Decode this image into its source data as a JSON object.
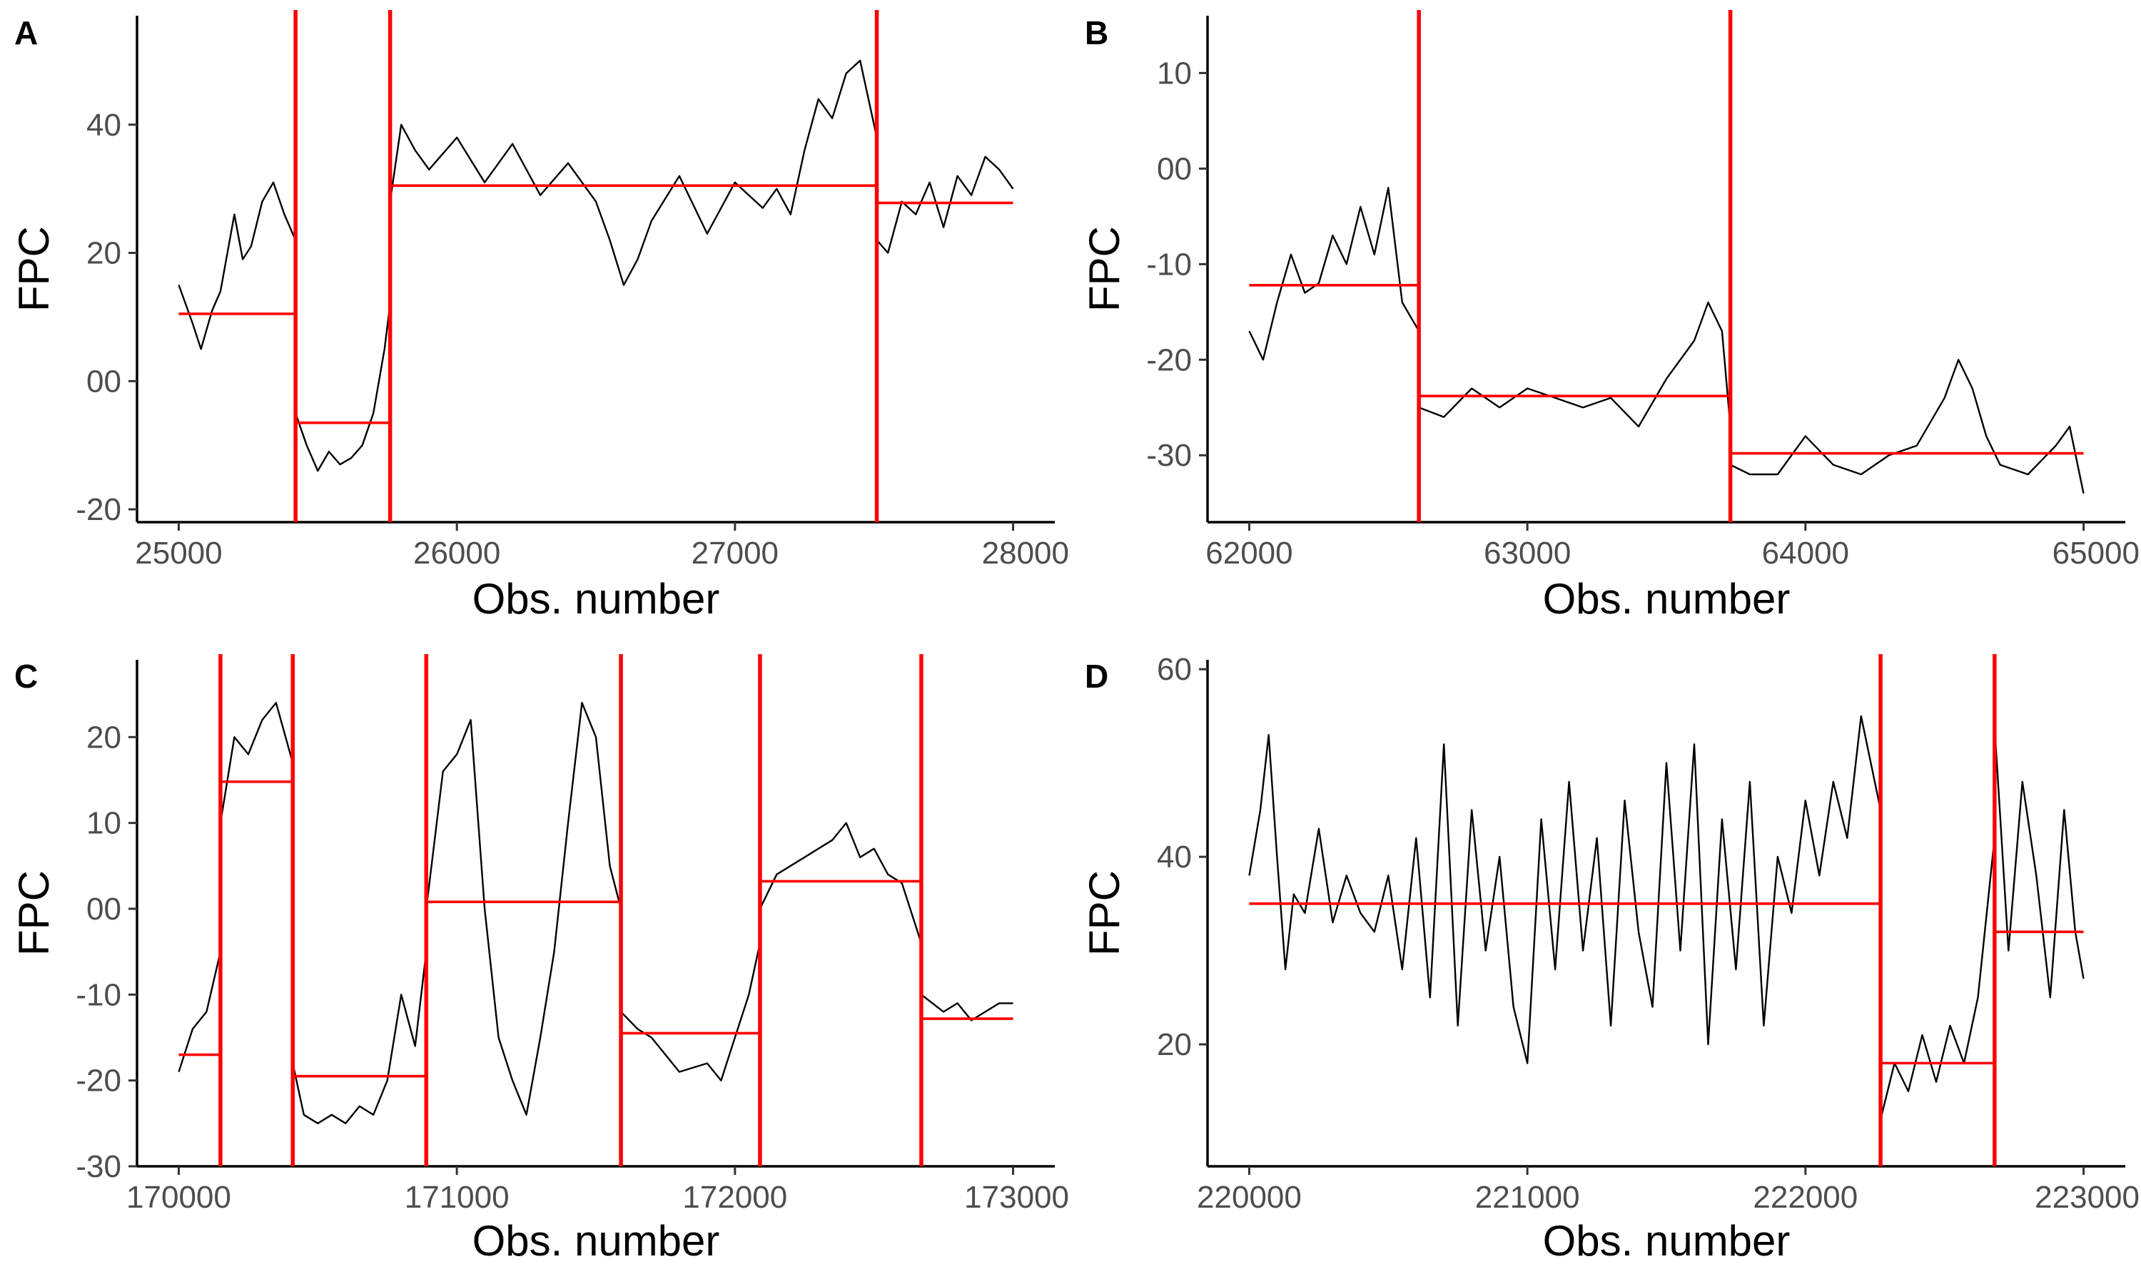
{
  "figure": {
    "background": "#ffffff",
    "series_color": "#000000",
    "changepoint_color": "#ff0000"
  },
  "chart_data": [
    {
      "panel": "A",
      "type": "line",
      "xlabel": "Obs. number",
      "ylabel": "FPC",
      "xlim": [
        24850,
        28150
      ],
      "ylim": [
        -22,
        57
      ],
      "xticks": [
        25000,
        26000,
        27000,
        28000
      ],
      "xtick_labels": [
        "25000",
        "26000",
        "27000",
        "28000"
      ],
      "yticks": [
        -20,
        0,
        20,
        40
      ],
      "ytick_labels": [
        "-20",
        "00",
        "20",
        "40"
      ],
      "changepoints": [
        25420,
        25760,
        27510
      ],
      "segments": [
        {
          "x0": 25000,
          "x1": 25420,
          "mean": 10.5
        },
        {
          "x0": 25420,
          "x1": 25760,
          "mean": -6.5
        },
        {
          "x0": 25760,
          "x1": 27510,
          "mean": 30.5
        },
        {
          "x0": 27510,
          "x1": 28000,
          "mean": 27.8
        }
      ],
      "series": [
        {
          "x": [
            25000,
            25050,
            25080,
            25120,
            25150,
            25200,
            25230,
            25260,
            25300,
            25340,
            25380,
            25420
          ],
          "y": [
            15,
            9,
            5,
            11,
            14,
            26,
            19,
            21,
            28,
            31,
            26,
            22
          ]
        },
        {
          "x": [
            25420,
            25460,
            25500,
            25540,
            25580,
            25620,
            25660,
            25700,
            25740,
            25760
          ],
          "y": [
            -5,
            -10,
            -14,
            -11,
            -13,
            -12,
            -10,
            -5,
            5,
            12
          ]
        },
        {
          "x": [
            25760,
            25800,
            25850,
            25900,
            26000,
            26100,
            26200,
            26300,
            26400,
            26500,
            26550,
            26600,
            26650,
            26700,
            26800,
            26900,
            27000,
            27100,
            27150,
            27200,
            27250,
            27300,
            27350,
            27400,
            27450,
            27510
          ],
          "y": [
            28,
            40,
            36,
            33,
            38,
            31,
            37,
            29,
            34,
            28,
            22,
            15,
            19,
            25,
            32,
            23,
            31,
            27,
            30,
            26,
            36,
            44,
            41,
            48,
            50,
            38
          ]
        },
        {
          "x": [
            27510,
            27550,
            27600,
            27650,
            27700,
            27750,
            27800,
            27850,
            27900,
            27950,
            28000
          ],
          "y": [
            22,
            20,
            28,
            26,
            31,
            24,
            32,
            29,
            35,
            33,
            30
          ]
        }
      ]
    },
    {
      "panel": "B",
      "type": "line",
      "xlabel": "Obs. number",
      "ylabel": "FPC",
      "xlim": [
        61850,
        65150
      ],
      "ylim": [
        -37,
        16
      ],
      "xticks": [
        62000,
        63000,
        64000,
        65000
      ],
      "xtick_labels": [
        "62000",
        "63000",
        "64000",
        "65000"
      ],
      "yticks": [
        -30,
        -20,
        -10,
        0,
        10
      ],
      "ytick_labels": [
        "-30",
        "-20",
        "-10",
        "00",
        "10"
      ],
      "changepoints": [
        62610,
        63730
      ],
      "segments": [
        {
          "x0": 62000,
          "x1": 62610,
          "mean": -12.2
        },
        {
          "x0": 62610,
          "x1": 63730,
          "mean": -23.8
        },
        {
          "x0": 63730,
          "x1": 65000,
          "mean": -29.8
        }
      ],
      "series": [
        {
          "x": [
            62000,
            62050,
            62100,
            62150,
            62200,
            62250,
            62300,
            62350,
            62400,
            62450,
            62500,
            62550,
            62610
          ],
          "y": [
            -17,
            -20,
            -14,
            -9,
            -13,
            -12,
            -7,
            -10,
            -4,
            -9,
            -2,
            -14,
            -17
          ]
        },
        {
          "x": [
            62610,
            62700,
            62800,
            62900,
            63000,
            63100,
            63200,
            63300,
            63400,
            63500,
            63600,
            63650,
            63700,
            63730
          ],
          "y": [
            -25,
            -26,
            -23,
            -25,
            -23,
            -24,
            -25,
            -24,
            -27,
            -22,
            -18,
            -14,
            -17,
            -27
          ]
        },
        {
          "x": [
            63730,
            63800,
            63900,
            64000,
            64100,
            64200,
            64300,
            64400,
            64500,
            64550,
            64600,
            64650,
            64700,
            64800,
            64900,
            64950,
            65000
          ],
          "y": [
            -31,
            -32,
            -32,
            -28,
            -31,
            -32,
            -30,
            -29,
            -24,
            -20,
            -23,
            -28,
            -31,
            -32,
            -29,
            -27,
            -34
          ]
        }
      ]
    },
    {
      "panel": "C",
      "type": "line",
      "xlabel": "Obs. number",
      "ylabel": "FPC",
      "xlim": [
        169850,
        173150
      ],
      "ylim": [
        -30,
        29
      ],
      "xticks": [
        170000,
        171000,
        172000,
        173000
      ],
      "xtick_labels": [
        "170000",
        "171000",
        "172000",
        "173000"
      ],
      "yticks": [
        -30,
        -20,
        -10,
        0,
        10,
        20
      ],
      "ytick_labels": [
        "-30",
        "-20",
        "-10",
        "00",
        "10",
        "20"
      ],
      "changepoints": [
        170150,
        170410,
        170890,
        171590,
        172090,
        172670
      ],
      "segments": [
        {
          "x0": 170000,
          "x1": 170150,
          "mean": -17
        },
        {
          "x0": 170150,
          "x1": 170410,
          "mean": 14.8
        },
        {
          "x0": 170410,
          "x1": 170890,
          "mean": -19.5
        },
        {
          "x0": 170890,
          "x1": 171590,
          "mean": 0.8
        },
        {
          "x0": 171590,
          "x1": 172090,
          "mean": -14.5
        },
        {
          "x0": 172090,
          "x1": 172670,
          "mean": 3.2
        },
        {
          "x0": 172670,
          "x1": 173000,
          "mean": -12.8
        }
      ],
      "series": [
        {
          "x": [
            170000,
            170050,
            170100,
            170150
          ],
          "y": [
            -19,
            -14,
            -12,
            -5
          ]
        },
        {
          "x": [
            170150,
            170200,
            170250,
            170300,
            170350,
            170410
          ],
          "y": [
            10,
            20,
            18,
            22,
            24,
            17
          ]
        },
        {
          "x": [
            170410,
            170450,
            170500,
            170550,
            170600,
            170650,
            170700,
            170750,
            170800,
            170850,
            170890
          ],
          "y": [
            -18,
            -24,
            -25,
            -24,
            -25,
            -23,
            -24,
            -20,
            -10,
            -16,
            -5
          ]
        },
        {
          "x": [
            170890,
            170950,
            171000,
            171050,
            171100,
            171150,
            171200,
            171250,
            171300,
            171350,
            171400,
            171450,
            171500,
            171550,
            171590
          ],
          "y": [
            0,
            16,
            18,
            22,
            0,
            -15,
            -20,
            -24,
            -15,
            -5,
            10,
            24,
            20,
            5,
            0
          ]
        },
        {
          "x": [
            171590,
            171650,
            171700,
            171800,
            171900,
            171950,
            172000,
            172050,
            172090
          ],
          "y": [
            -12,
            -14,
            -15,
            -19,
            -18,
            -20,
            -15,
            -10,
            -4
          ]
        },
        {
          "x": [
            172090,
            172150,
            172250,
            172350,
            172400,
            172450,
            172500,
            172550,
            172600,
            172670
          ],
          "y": [
            0,
            4,
            6,
            8,
            10,
            6,
            7,
            4,
            3,
            -4
          ]
        },
        {
          "x": [
            172670,
            172750,
            172800,
            172850,
            172900,
            172950,
            173000
          ],
          "y": [
            -10,
            -12,
            -11,
            -13,
            -12,
            -11,
            -11
          ]
        }
      ]
    },
    {
      "panel": "D",
      "type": "line",
      "xlabel": "Obs. number",
      "ylabel": "FPC",
      "xlim": [
        219850,
        223150
      ],
      "ylim": [
        7,
        61
      ],
      "xticks": [
        220000,
        221000,
        222000,
        223000
      ],
      "xtick_labels": [
        "220000",
        "221000",
        "222000",
        "223000"
      ],
      "yticks": [
        20,
        40,
        60
      ],
      "ytick_labels": [
        "20",
        "40",
        "60"
      ],
      "changepoints": [
        222270,
        222680
      ],
      "segments": [
        {
          "x0": 220000,
          "x1": 222270,
          "mean": 35
        },
        {
          "x0": 222270,
          "x1": 222680,
          "mean": 18
        },
        {
          "x0": 222680,
          "x1": 223000,
          "mean": 32
        }
      ],
      "series": [
        {
          "x": [
            220000,
            220040,
            220070,
            220100,
            220130,
            220160,
            220200,
            220250,
            220300,
            220350,
            220400,
            220450,
            220500,
            220550,
            220600,
            220650,
            220700,
            220750,
            220800,
            220850,
            220900,
            220950,
            221000,
            221050,
            221100,
            221150,
            221200,
            221250,
            221300,
            221350,
            221400,
            221450,
            221500,
            221550,
            221600,
            221650,
            221700,
            221750,
            221800,
            221850,
            221900,
            221950,
            222000,
            222050,
            222100,
            222150,
            222200,
            222270
          ],
          "y": [
            38,
            45,
            53,
            40,
            28,
            36,
            34,
            43,
            33,
            38,
            34,
            32,
            38,
            28,
            42,
            25,
            52,
            22,
            45,
            30,
            40,
            24,
            18,
            44,
            28,
            48,
            30,
            42,
            22,
            46,
            32,
            24,
            50,
            30,
            52,
            20,
            44,
            28,
            48,
            22,
            40,
            34,
            46,
            38,
            48,
            42,
            55,
            45
          ]
        },
        {
          "x": [
            222270,
            222320,
            222370,
            222420,
            222470,
            222520,
            222570,
            222620,
            222680
          ],
          "y": [
            12,
            18,
            15,
            21,
            16,
            22,
            18,
            25,
            42
          ]
        },
        {
          "x": [
            222680,
            222730,
            222780,
            222830,
            222880,
            222930,
            222970,
            223000
          ],
          "y": [
            54,
            30,
            48,
            38,
            25,
            45,
            32,
            27
          ]
        }
      ]
    }
  ]
}
